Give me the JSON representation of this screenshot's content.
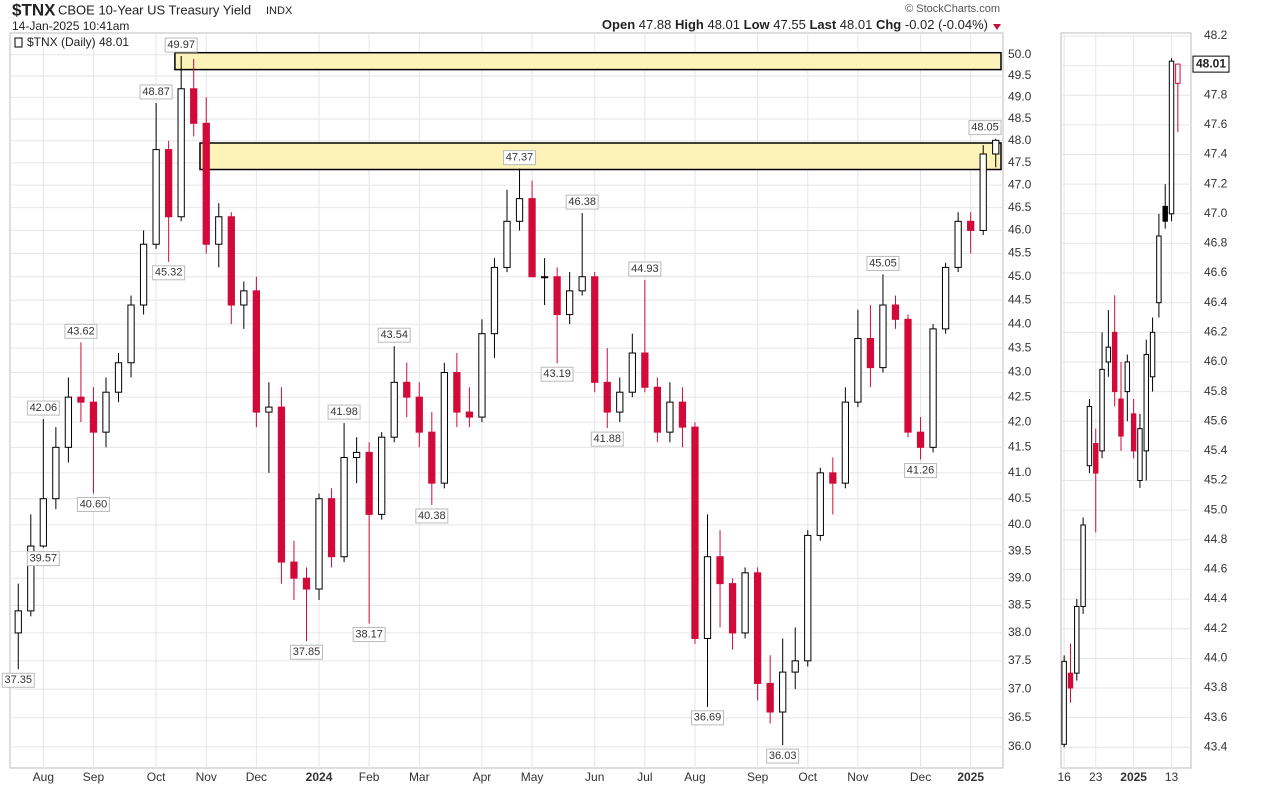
{
  "header": {
    "symbol": "$TNX",
    "name": "CBOE 10-Year US Treasury Yield",
    "exchange": "INDX",
    "timestamp": "14-Jan-2025 10:41am",
    "credit": "© StockCharts.com",
    "quote": {
      "open_label": "Open",
      "open": 47.88,
      "high_label": "High",
      "high": 48.01,
      "low_label": "Low",
      "low": 47.55,
      "last_label": "Last",
      "last": 48.01,
      "chg_label": "Chg",
      "chg": -0.02,
      "chg_pct": "(-0.04%)"
    }
  },
  "chart_data": [
    {
      "type": "candlestick",
      "legend": "$TNX (Daily) 48.01",
      "log_scale": true,
      "grid": true,
      "up_color": "#000000",
      "down_color": "#d10a3a",
      "zone_color": "#fdf2b8",
      "categories": [
        null,
        null,
        "Aug",
        null,
        null,
        null,
        "Sep",
        null,
        null,
        null,
        null,
        "Oct",
        null,
        null,
        null,
        "Nov",
        null,
        null,
        null,
        "Dec",
        null,
        null,
        null,
        null,
        "2024",
        null,
        null,
        null,
        "Feb",
        null,
        null,
        null,
        "Mar",
        null,
        null,
        null,
        null,
        "Apr",
        null,
        null,
        null,
        "May",
        null,
        null,
        null,
        null,
        "Jun",
        null,
        null,
        null,
        "Jul",
        null,
        null,
        null,
        "Aug",
        null,
        null,
        null,
        null,
        "Sep",
        null,
        null,
        null,
        "Oct",
        null,
        null,
        null,
        "Nov",
        null,
        null,
        null,
        null,
        "Dec",
        null,
        null,
        null,
        "2025",
        null,
        null
      ],
      "open": [
        38.0,
        38.4,
        39.6,
        40.5,
        41.5,
        42.5,
        42.4,
        41.8,
        42.6,
        43.2,
        44.4,
        45.7,
        47.8,
        46.3,
        49.2,
        48.4,
        45.7,
        46.3,
        44.4,
        44.7,
        42.2,
        42.3,
        39.3,
        39.0,
        38.8,
        40.5,
        39.4,
        41.3,
        41.4,
        40.2,
        41.7,
        42.8,
        42.5,
        41.8,
        40.8,
        43.0,
        42.2,
        42.1,
        43.8,
        45.2,
        46.2,
        46.7,
        45.0,
        45.0,
        44.2,
        44.7,
        45.0,
        42.8,
        42.2,
        42.6,
        43.4,
        42.7,
        41.8,
        42.4,
        41.9,
        37.9,
        39.4,
        38.9,
        38.0,
        39.1,
        37.1,
        36.6,
        37.3,
        37.5,
        39.8,
        41.0,
        40.8,
        42.4,
        43.7,
        43.1,
        44.4,
        44.1,
        41.8,
        41.5,
        43.9,
        45.2,
        46.2,
        46.0,
        47.7
      ],
      "high": [
        38.9,
        40.2,
        42.06,
        41.9,
        42.9,
        43.62,
        42.7,
        42.9,
        43.4,
        44.6,
        46.0,
        48.87,
        48.0,
        49.97,
        49.9,
        49.0,
        46.6,
        46.4,
        44.9,
        45.0,
        42.8,
        42.7,
        39.7,
        39.2,
        40.6,
        40.7,
        41.98,
        41.7,
        41.6,
        41.8,
        43.54,
        43.2,
        42.8,
        42.2,
        43.2,
        43.4,
        42.7,
        44.1,
        45.4,
        46.9,
        47.37,
        47.1,
        45.4,
        45.2,
        45.1,
        46.38,
        45.1,
        43.5,
        42.9,
        43.8,
        44.93,
        42.9,
        42.8,
        42.7,
        42.0,
        40.2,
        39.9,
        39.0,
        39.2,
        39.2,
        37.6,
        37.9,
        38.1,
        39.9,
        41.1,
        41.3,
        42.7,
        44.3,
        44.4,
        45.05,
        44.6,
        44.2,
        42.1,
        44.0,
        45.3,
        46.4,
        46.4,
        47.9,
        48.05
      ],
      "low": [
        37.35,
        38.3,
        39.57,
        40.3,
        41.2,
        42.0,
        40.6,
        41.5,
        42.4,
        42.9,
        44.2,
        45.6,
        45.32,
        46.2,
        48.1,
        45.5,
        45.2,
        44.0,
        43.9,
        41.9,
        41.0,
        38.9,
        38.6,
        37.85,
        38.6,
        39.2,
        39.3,
        40.8,
        38.17,
        40.1,
        41.6,
        42.1,
        41.5,
        40.38,
        40.7,
        41.9,
        41.9,
        42.0,
        43.3,
        45.1,
        46.0,
        45.0,
        44.4,
        43.19,
        44.0,
        44.6,
        42.6,
        41.88,
        42.0,
        42.5,
        42.6,
        41.6,
        41.6,
        41.5,
        37.8,
        36.69,
        38.1,
        37.7,
        37.9,
        36.8,
        36.4,
        36.03,
        37.0,
        37.4,
        39.7,
        40.2,
        40.7,
        42.3,
        42.7,
        43.0,
        43.9,
        41.7,
        41.26,
        41.4,
        43.8,
        45.1,
        45.5,
        45.9,
        47.4
      ],
      "close": [
        38.4,
        39.6,
        40.5,
        41.5,
        42.5,
        42.4,
        41.8,
        42.6,
        43.2,
        44.4,
        45.7,
        47.8,
        46.3,
        49.2,
        48.4,
        45.7,
        46.3,
        44.4,
        44.7,
        42.2,
        42.3,
        39.3,
        39.0,
        38.8,
        40.5,
        39.4,
        41.3,
        41.4,
        40.2,
        41.7,
        42.8,
        42.5,
        41.8,
        40.8,
        43.0,
        42.2,
        42.1,
        43.8,
        45.2,
        46.2,
        46.7,
        45.0,
        45.0,
        44.2,
        44.7,
        45.0,
        42.8,
        42.2,
        42.6,
        43.4,
        42.7,
        41.8,
        42.4,
        41.9,
        37.9,
        39.4,
        38.9,
        38.0,
        39.1,
        37.1,
        36.6,
        37.3,
        37.5,
        39.8,
        41.0,
        40.8,
        42.4,
        43.7,
        43.1,
        44.4,
        44.1,
        41.8,
        41.5,
        43.9,
        45.2,
        46.2,
        46.0,
        47.7,
        48.01
      ],
      "high_labels": [
        null,
        null,
        "42.06",
        null,
        null,
        "43.62",
        null,
        null,
        null,
        null,
        null,
        "48.87",
        null,
        "49.97",
        null,
        null,
        null,
        null,
        null,
        null,
        null,
        null,
        null,
        null,
        null,
        null,
        "41.98",
        null,
        null,
        null,
        "43.54",
        null,
        null,
        null,
        null,
        null,
        null,
        null,
        null,
        null,
        "47.37",
        null,
        null,
        null,
        null,
        "46.38",
        null,
        null,
        null,
        null,
        "44.93",
        null,
        null,
        null,
        null,
        null,
        null,
        null,
        null,
        null,
        null,
        null,
        null,
        null,
        null,
        null,
        null,
        null,
        null,
        "45.05",
        null,
        null,
        null,
        null,
        null,
        null,
        null,
        null,
        "48.05"
      ],
      "low_labels": [
        "37.35",
        null,
        "39.57",
        null,
        null,
        null,
        "40.60",
        null,
        null,
        null,
        null,
        null,
        "45.32",
        null,
        null,
        null,
        null,
        null,
        null,
        null,
        null,
        null,
        null,
        "37.85",
        null,
        null,
        null,
        null,
        "38.17",
        null,
        null,
        null,
        null,
        "40.38",
        null,
        null,
        null,
        null,
        null,
        null,
        null,
        null,
        null,
        "43.19",
        null,
        null,
        null,
        "41.88",
        null,
        null,
        null,
        null,
        null,
        null,
        null,
        "36.69",
        null,
        null,
        null,
        null,
        null,
        "36.03",
        null,
        null,
        null,
        null,
        null,
        null,
        null,
        null,
        null,
        null,
        "41.26",
        null,
        null,
        null,
        null,
        null,
        null
      ],
      "zones": [
        {
          "low": 49.65,
          "high": 50.05
        },
        {
          "low": 47.35,
          "high": 47.95
        }
      ],
      "ylim": [
        35.64,
        50.52
      ],
      "yticks": [
        {
          "value": 36,
          "label": "36.0"
        },
        {
          "value": 36.5,
          "label": "36.5"
        },
        {
          "value": 37,
          "label": "37.0"
        },
        {
          "value": 37.5,
          "label": "37.5"
        },
        {
          "value": 38,
          "label": "38.0"
        },
        {
          "value": 38.5,
          "label": "38.5"
        },
        {
          "value": 39,
          "label": "39.0"
        },
        {
          "value": 39.5,
          "label": "39.5"
        },
        {
          "value": 40,
          "label": "40.0"
        },
        {
          "value": 40.5,
          "label": "40.5"
        },
        {
          "value": 41,
          "label": "41.0"
        },
        {
          "value": 41.5,
          "label": "41.5"
        },
        {
          "value": 42,
          "label": "42.0"
        },
        {
          "value": 42.5,
          "label": "42.5"
        },
        {
          "value": 43,
          "label": "43.0"
        },
        {
          "value": 43.5,
          "label": "43.5"
        },
        {
          "value": 44,
          "label": "44.0"
        },
        {
          "value": 44.5,
          "label": "44.5"
        },
        {
          "value": 45,
          "label": "45.0"
        },
        {
          "value": 45.5,
          "label": "45.5"
        },
        {
          "value": 46,
          "label": "46.0"
        },
        {
          "value": 46.5,
          "label": "46.5"
        },
        {
          "value": 47,
          "label": "47.0"
        },
        {
          "value": 47.5,
          "label": "47.5"
        },
        {
          "value": 48,
          "label": "48.0"
        },
        {
          "value": 48.5,
          "label": "48.5"
        },
        {
          "value": 49,
          "label": "49.0"
        },
        {
          "value": 49.5,
          "label": "49.5"
        },
        {
          "value": 50,
          "label": "50.0"
        }
      ]
    },
    {
      "type": "candlestick",
      "log_scale": false,
      "grid": true,
      "up_color": "#000000",
      "down_color": "#d10a3a",
      "categories": [
        "16",
        null,
        null,
        null,
        null,
        "23",
        null,
        null,
        null,
        null,
        null,
        "2025",
        null,
        null,
        null,
        null,
        null,
        "13",
        null
      ],
      "open": [
        43.42,
        43.9,
        43.9,
        44.35,
        45.3,
        45.45,
        45.4,
        46.0,
        46.2,
        45.75,
        45.8,
        45.65,
        45.2,
        45.4,
        45.9,
        46.4,
        47.05,
        47.0,
        47.88
      ],
      "high": [
        44.02,
        44.1,
        44.4,
        44.95,
        45.75,
        45.55,
        46.2,
        46.35,
        46.45,
        46.0,
        46.05,
        45.75,
        45.65,
        46.15,
        46.3,
        47.0,
        47.2,
        48.05,
        48.01
      ],
      "low": [
        43.4,
        43.7,
        43.85,
        44.3,
        45.25,
        44.85,
        45.35,
        45.9,
        45.7,
        45.4,
        45.6,
        45.35,
        45.15,
        45.2,
        45.8,
        46.3,
        46.9,
        46.95,
        47.55
      ],
      "close": [
        43.98,
        43.8,
        44.35,
        44.9,
        45.7,
        45.25,
        45.95,
        46.1,
        45.8,
        45.5,
        46.0,
        45.4,
        45.55,
        46.05,
        46.2,
        46.85,
        46.95,
        48.03,
        48.01
      ],
      "ylim": [
        43.26,
        48.22
      ],
      "yticks": [
        {
          "value": 43.4,
          "label": "43.4"
        },
        {
          "value": 43.6,
          "label": "43.6"
        },
        {
          "value": 43.8,
          "label": "43.8"
        },
        {
          "value": 44,
          "label": "44.0"
        },
        {
          "value": 44.2,
          "label": "44.2"
        },
        {
          "value": 44.4,
          "label": "44.4"
        },
        {
          "value": 44.6,
          "label": "44.6"
        },
        {
          "value": 44.8,
          "label": "44.8"
        },
        {
          "value": 45,
          "label": "45.0"
        },
        {
          "value": 45.2,
          "label": "45.2"
        },
        {
          "value": 45.4,
          "label": "45.4"
        },
        {
          "value": 45.6,
          "label": "45.6"
        },
        {
          "value": 45.8,
          "label": "45.8"
        },
        {
          "value": 46,
          "label": "46.0"
        },
        {
          "value": 46.2,
          "label": "46.2"
        },
        {
          "value": 46.4,
          "label": "46.4"
        },
        {
          "value": 46.6,
          "label": "46.6"
        },
        {
          "value": 46.8,
          "label": "46.8"
        },
        {
          "value": 47,
          "label": "47.0"
        },
        {
          "value": 47.2,
          "label": "47.2"
        },
        {
          "value": 47.4,
          "label": "47.4"
        },
        {
          "value": 47.6,
          "label": "47.6"
        },
        {
          "value": 47.8,
          "label": "47.8"
        },
        {
          "value": 48,
          "label": "48.0"
        },
        {
          "value": 48.2,
          "label": "48.2"
        }
      ]
    }
  ]
}
